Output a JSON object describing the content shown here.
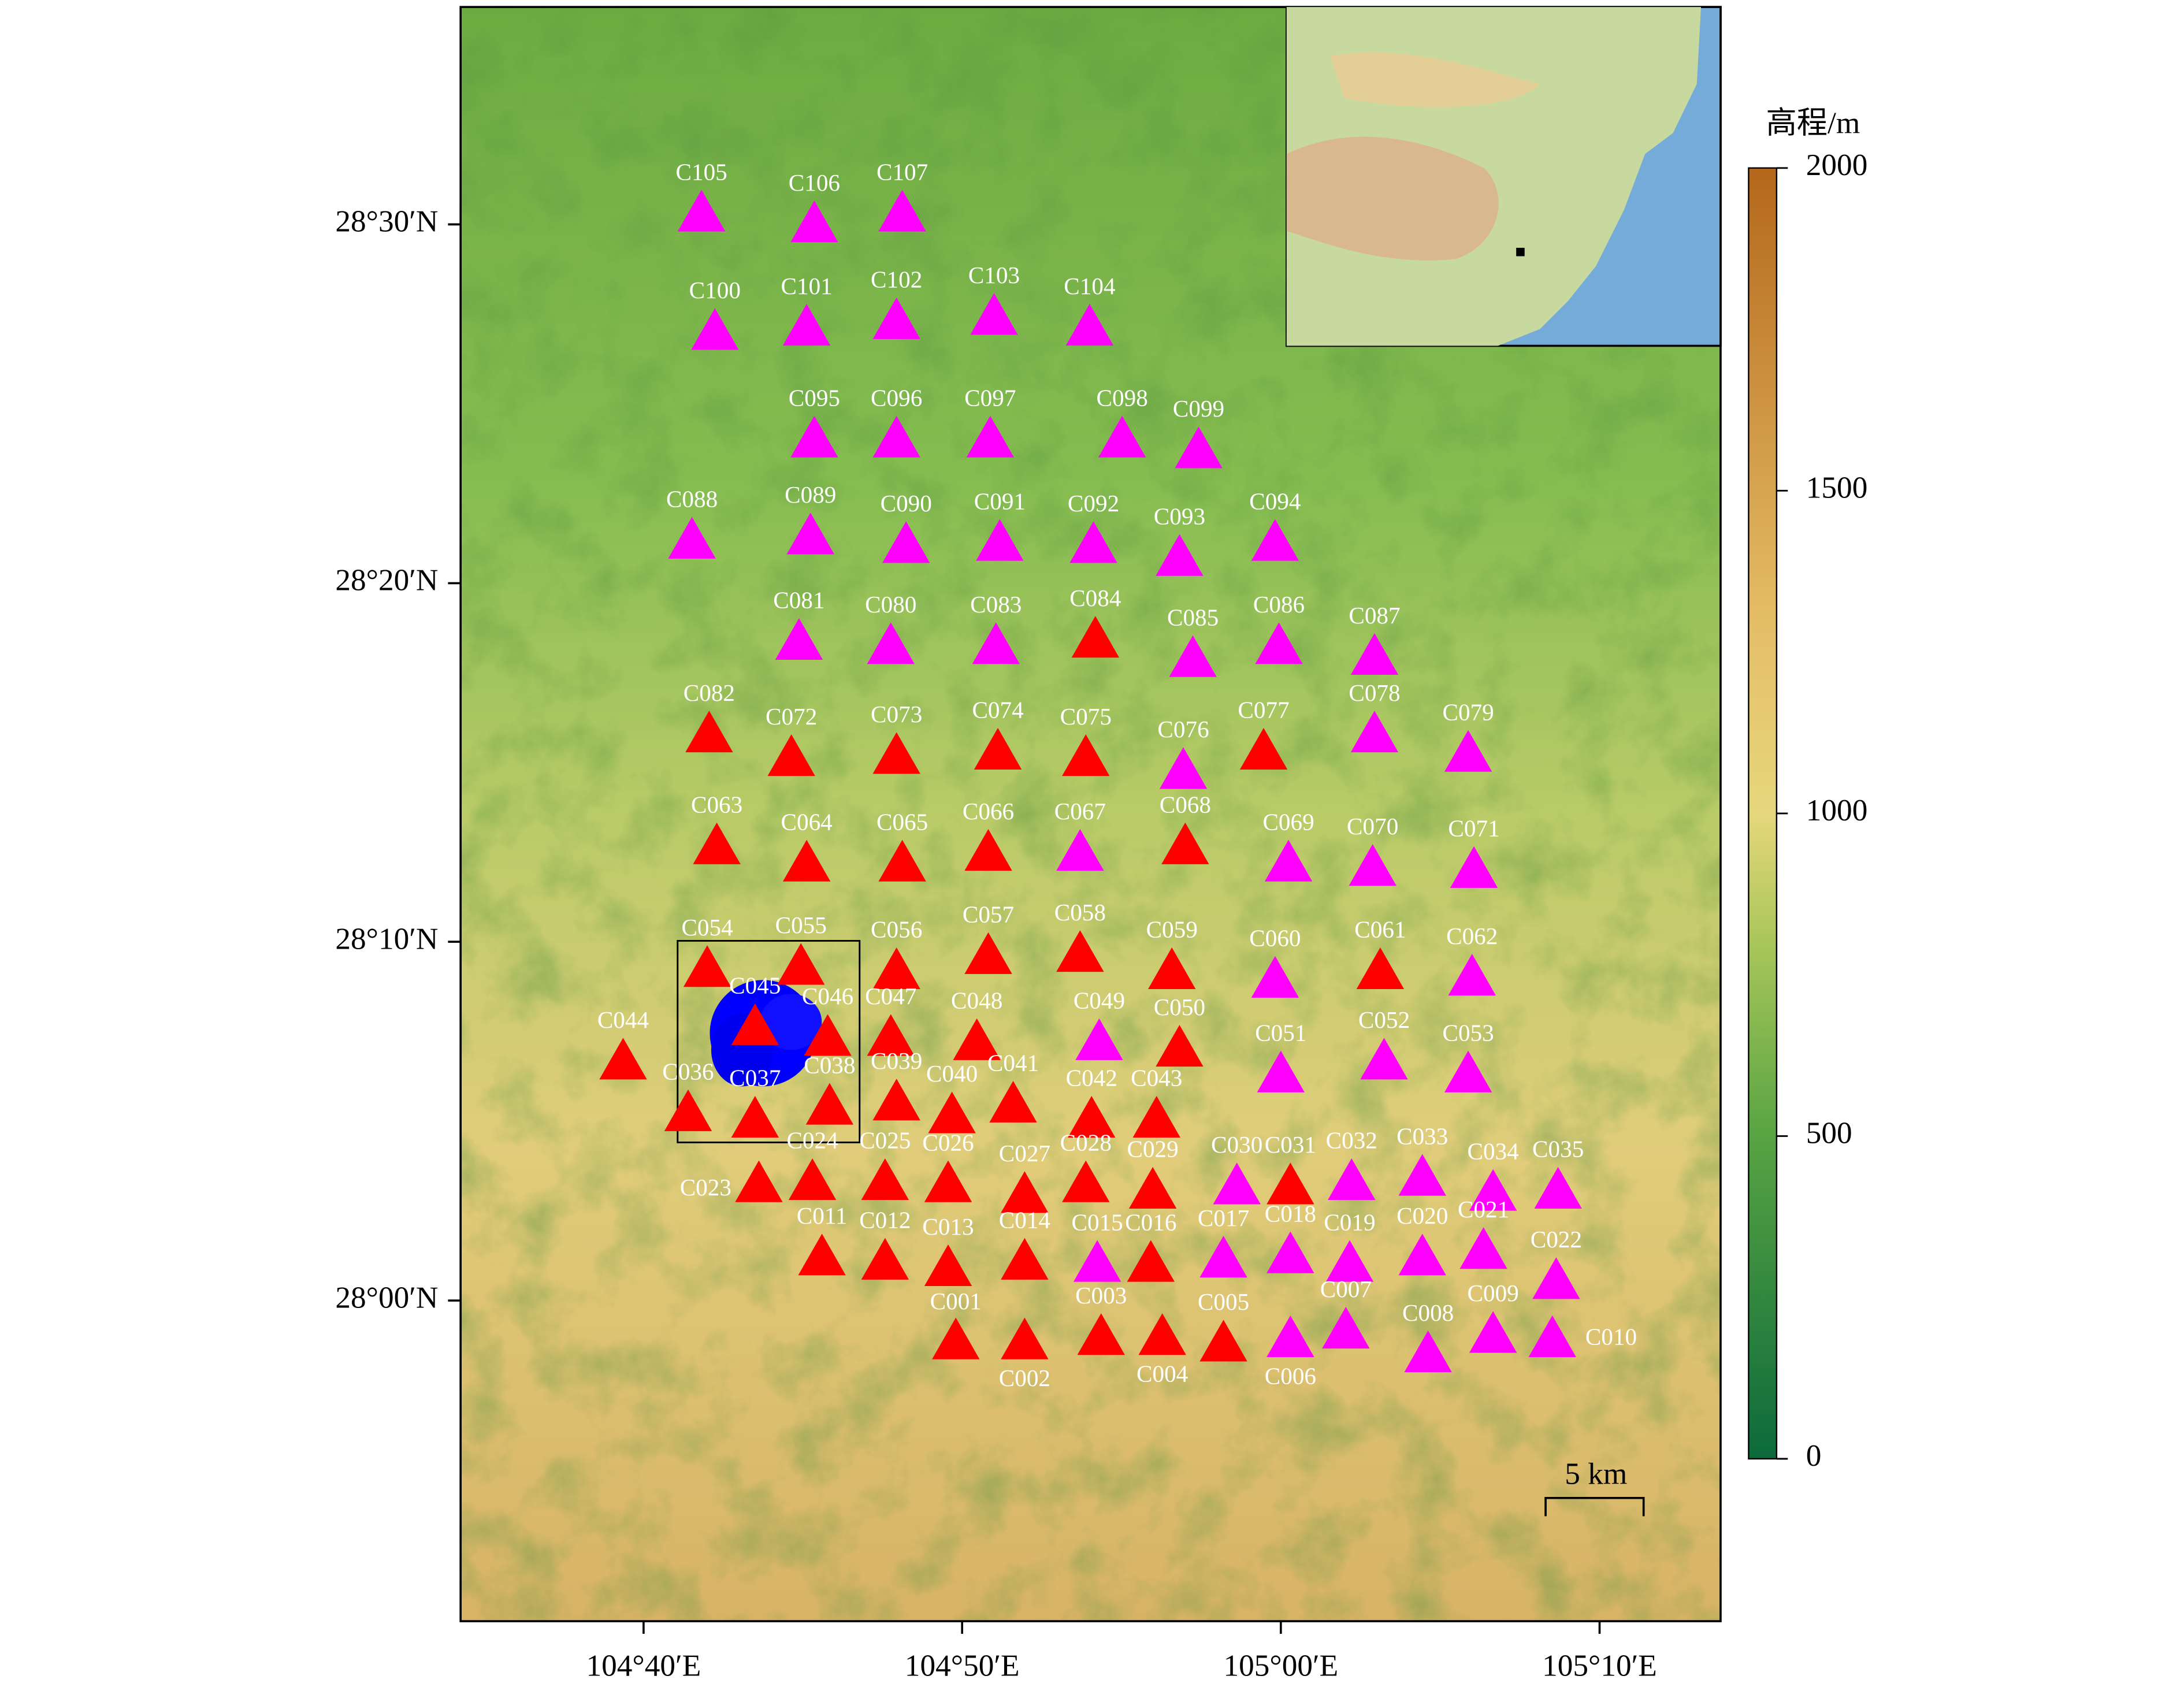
{
  "map": {
    "xlim": [
      104.571,
      105.23
    ],
    "ylim": [
      27.851,
      28.601
    ],
    "xticks": [
      {
        "value": 104.6667,
        "label": "104°40′E"
      },
      {
        "value": 104.8333,
        "label": "104°50′E"
      },
      {
        "value": 105,
        "label": "105°00′E"
      },
      {
        "value": 105.1667,
        "label": "105°10′E"
      }
    ],
    "yticks": [
      {
        "value": 28.5,
        "label": "28°30′N"
      },
      {
        "value": 28.3333,
        "label": "28°20′N"
      },
      {
        "value": 28.1667,
        "label": "28°10′N"
      },
      {
        "value": 28,
        "label": "28°00′N"
      }
    ],
    "station_groups": [
      {
        "color": "#ff0000",
        "names": [
          "C084",
          "C082",
          "C072",
          "C073",
          "C074",
          "C075",
          "C077",
          "C063",
          "C064",
          "C065",
          "C066",
          "C068",
          "C054",
          "C055",
          "C056",
          "C057",
          "C058",
          "C059",
          "C061",
          "C045",
          "C046",
          "C047",
          "C048",
          "C050",
          "C044",
          "C036",
          "C037",
          "C038",
          "C039",
          "C040",
          "C041",
          "C042",
          "C043",
          "C023",
          "C024",
          "C025",
          "C026",
          "C027",
          "C028",
          "C029",
          "C031",
          "C011",
          "C012",
          "C013",
          "C014",
          "C016",
          "C001",
          "C002",
          "C003",
          "C004",
          "C005"
        ],
        "lon": [
          104.903,
          104.701,
          104.744,
          104.799,
          104.852,
          104.898,
          104.991,
          104.705,
          104.752,
          104.802,
          104.847,
          104.95,
          104.7,
          104.749,
          104.799,
          104.847,
          104.895,
          104.943,
          105.052,
          104.725,
          104.763,
          104.796,
          104.841,
          104.947,
          104.656,
          104.69,
          104.725,
          104.764,
          104.799,
          104.828,
          104.86,
          104.901,
          104.935,
          104.727,
          104.755,
          104.793,
          104.826,
          104.866,
          104.898,
          104.933,
          105.005,
          104.76,
          104.793,
          104.826,
          104.866,
          104.932,
          104.83,
          104.866,
          104.906,
          104.938,
          104.97
        ],
        "lat": [
          28.307,
          28.263,
          28.252,
          28.253,
          28.255,
          28.252,
          28.255,
          28.211,
          28.203,
          28.203,
          28.208,
          28.211,
          28.154,
          28.155,
          28.153,
          28.16,
          28.161,
          28.153,
          28.153,
          28.127,
          28.122,
          28.122,
          28.12,
          28.117,
          28.111,
          28.087,
          28.084,
          28.09,
          28.092,
          28.086,
          28.091,
          28.084,
          28.084,
          28.054,
          28.055,
          28.055,
          28.054,
          28.049,
          28.054,
          28.051,
          28.053,
          28.02,
          28.018,
          28.015,
          28.018,
          28.017,
          27.981,
          27.981,
          27.983,
          27.983,
          27.98
        ]
      },
      {
        "color": "#ff00ff",
        "names": [
          "C105",
          "C106",
          "C107",
          "C100",
          "C101",
          "C102",
          "C103",
          "C104",
          "C095",
          "C096",
          "C097",
          "C098",
          "C099",
          "C088",
          "C089",
          "C090",
          "C091",
          "C092",
          "C093",
          "C094",
          "C081",
          "C080",
          "C083",
          "C085",
          "C086",
          "C087",
          "C076",
          "C078",
          "C079",
          "C067",
          "C069",
          "C070",
          "C071",
          "C060",
          "C062",
          "C049",
          "C051",
          "C052",
          "C053",
          "C030",
          "C032",
          "C033",
          "C034",
          "C035",
          "C015",
          "C017",
          "C018",
          "C019",
          "C020",
          "C021",
          "C022",
          "C006",
          "C007",
          "C008",
          "C009",
          "C010"
        ],
        "lon": [
          104.697,
          104.756,
          104.802,
          104.704,
          104.752,
          104.799,
          104.85,
          104.9,
          104.756,
          104.799,
          104.848,
          104.917,
          104.957,
          104.692,
          104.754,
          104.804,
          104.853,
          104.902,
          104.947,
          104.997,
          104.748,
          104.796,
          104.851,
          104.954,
          104.999,
          105.049,
          104.949,
          105.049,
          105.098,
          104.895,
          105.004,
          105.048,
          105.101,
          104.997,
          105.1,
          104.905,
          105.0,
          105.054,
          105.098,
          104.977,
          105.037,
          105.074,
          105.111,
          105.145,
          104.904,
          104.97,
          105.005,
          105.036,
          105.074,
          105.106,
          105.144,
          105.005,
          105.034,
          105.077,
          105.111,
          105.142
        ],
        "lat": [
          28.505,
          28.5,
          28.505,
          28.45,
          28.452,
          28.455,
          28.457,
          28.452,
          28.4,
          28.4,
          28.4,
          28.4,
          28.395,
          28.353,
          28.355,
          28.351,
          28.352,
          28.351,
          28.345,
          28.352,
          28.306,
          28.304,
          28.304,
          28.298,
          28.304,
          28.299,
          28.246,
          28.263,
          28.254,
          28.208,
          28.203,
          28.201,
          28.2,
          28.149,
          28.15,
          28.12,
          28.105,
          28.111,
          28.105,
          28.053,
          28.055,
          28.057,
          28.05,
          28.051,
          28.017,
          28.019,
          28.021,
          28.017,
          28.02,
          28.023,
          28.009,
          27.982,
          27.986,
          27.975,
          27.984,
          27.982
        ]
      }
    ],
    "colorbar": {
      "title": "高程/m",
      "lim": [
        0,
        2000
      ],
      "ticks": [
        0,
        500,
        1000,
        1500,
        2000
      ]
    },
    "scale_bar": {
      "label": "5 km"
    }
  }
}
